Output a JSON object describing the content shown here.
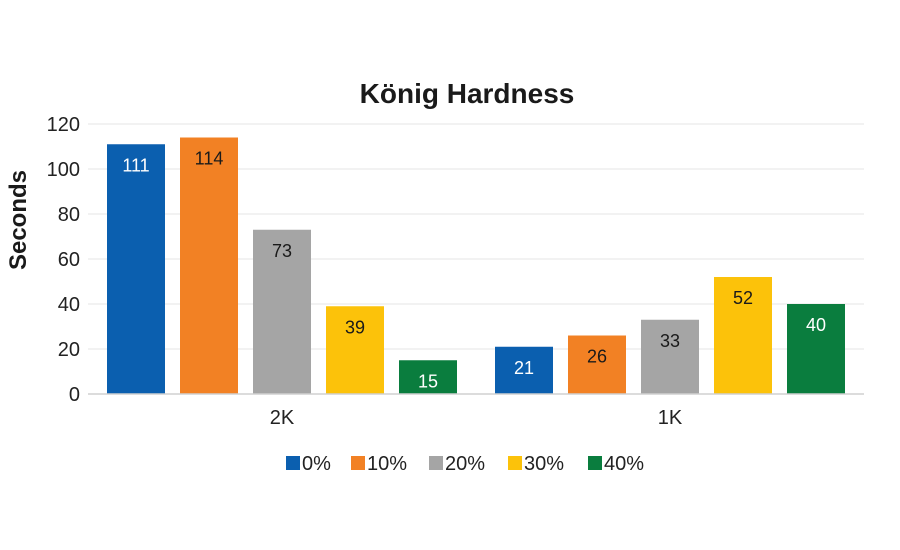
{
  "chart_data": {
    "type": "bar",
    "title": "König Hardness",
    "xlabel": "",
    "ylabel": "Seconds",
    "categories": [
      "2K",
      "1K"
    ],
    "series": [
      {
        "name": "0%",
        "color": "#0b5faf",
        "values": [
          111,
          21
        ]
      },
      {
        "name": "10%",
        "color": "#f28124",
        "values": [
          114,
          26
        ]
      },
      {
        "name": "20%",
        "color": "#a5a5a5",
        "values": [
          73,
          33
        ]
      },
      {
        "name": "30%",
        "color": "#fcc20a",
        "values": [
          39,
          52
        ]
      },
      {
        "name": "40%",
        "color": "#0a7d3e",
        "values": [
          15,
          40
        ]
      }
    ],
    "ylim": [
      0,
      120
    ],
    "yticks": [
      0,
      20,
      40,
      60,
      80,
      100,
      120
    ],
    "grid": true,
    "legend_position": "bottom",
    "label_colors": [
      "#ffffff",
      "#1a1a1a",
      "#1a1a1a",
      "#1a1a1a",
      "#ffffff"
    ]
  }
}
